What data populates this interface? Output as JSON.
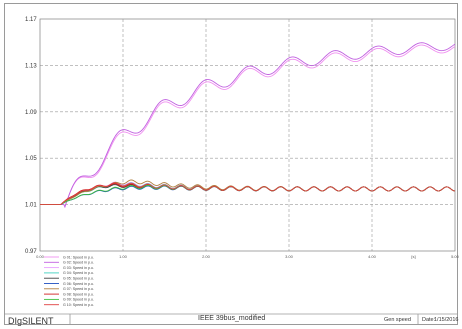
{
  "footer": {
    "brand": "DIgSILENT",
    "project": "IEEE 39bus_modified",
    "plot_name": "Gen speed",
    "date_label": "Date:",
    "date_value": "1/15/2016"
  },
  "chart_data": {
    "type": "line",
    "ylim": [
      0.97,
      1.17
    ],
    "xlim": [
      0,
      5
    ],
    "yticks": [
      "1.17",
      "1.13",
      "1.09",
      "1.05",
      "1.01",
      "0.97"
    ],
    "xticks": [
      "0.00",
      "1.00",
      "2.00",
      "3.00",
      "4.00",
      "[s]",
      "5.00"
    ],
    "grid": true,
    "legend_position": "bottom-left",
    "series": [
      {
        "name": "G 01: Speed in p.u.",
        "color": "#f090f0",
        "group": "high",
        "shift": 0.0
      },
      {
        "name": "G 02: Speed in p.u.",
        "color": "#c060e0",
        "group": "high",
        "shift": 0.004
      },
      {
        "name": "G 03: Speed in p.u.",
        "color": "#e8a0ff",
        "group": "low",
        "peak": 1.032,
        "tpk": 0.82
      },
      {
        "name": "G 04: Speed in p.u.",
        "color": "#40d0c0",
        "group": "low",
        "peak": 1.031,
        "tpk": 0.88
      },
      {
        "name": "G 05: Speed in p.u.",
        "color": "#404040",
        "group": "low",
        "peak": 1.029,
        "tpk": 0.7
      },
      {
        "name": "G 06: Speed in p.u.",
        "color": "#2050c0",
        "group": "low",
        "peak": 1.027,
        "tpk": 0.95
      },
      {
        "name": "G 07: Speed in p.u.",
        "color": "#b08040",
        "group": "low",
        "peak": 1.034,
        "tpk": 1.05
      },
      {
        "name": "G 08: Speed in p.u.",
        "color": "#d02020",
        "group": "low",
        "peak": 1.03,
        "tpk": 0.65
      },
      {
        "name": "G 09: Speed in p.u.",
        "color": "#40c040",
        "group": "low",
        "peak": 1.028,
        "tpk": 1.0
      },
      {
        "name": "G 10: Speed in p.u.",
        "color": "#e04040",
        "group": "low",
        "peak": 1.031,
        "tpk": 0.75
      }
    ]
  }
}
